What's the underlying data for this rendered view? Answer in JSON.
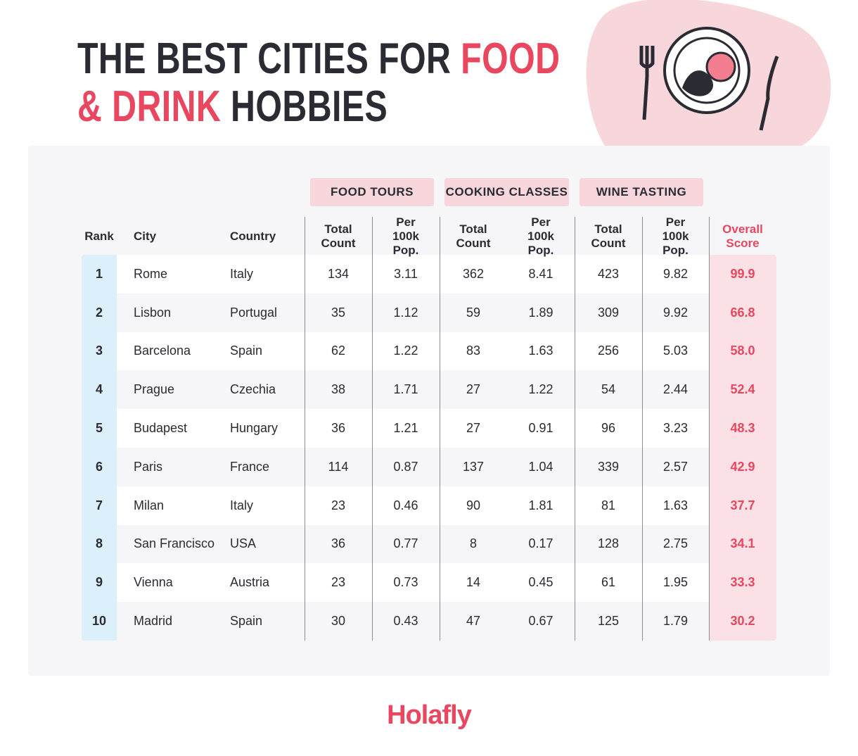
{
  "title": {
    "line1_dark": "THE BEST CITIES FOR",
    "line1_accent": "FOOD",
    "line2_accent": "& DRINK",
    "line2_dark": "HOBBIES"
  },
  "table": {
    "groups": [
      "FOOD TOURS",
      "COOKING CLASSES",
      "WINE TASTING"
    ],
    "columns": [
      "Rank",
      "City",
      "Country",
      "Total Count",
      "Per 100k Pop.",
      "Total Count",
      "Per 100k Pop.",
      "Total Count",
      "Per 100k Pop.",
      "Overall Score"
    ],
    "rows": [
      [
        1,
        "Rome",
        "Italy",
        134,
        3.11,
        362,
        8.41,
        423,
        9.82,
        "99.9"
      ],
      [
        2,
        "Lisbon",
        "Portugal",
        35,
        1.12,
        59,
        1.89,
        309,
        9.92,
        "66.8"
      ],
      [
        3,
        "Barcelona",
        "Spain",
        62,
        1.22,
        83,
        1.63,
        256,
        5.03,
        "58.0"
      ],
      [
        4,
        "Prague",
        "Czechia",
        38,
        1.71,
        27,
        1.22,
        54,
        2.44,
        "52.4"
      ],
      [
        5,
        "Budapest",
        "Hungary",
        36,
        1.21,
        27,
        0.91,
        96,
        3.23,
        "48.3"
      ],
      [
        6,
        "Paris",
        "France",
        114,
        0.87,
        137,
        1.04,
        339,
        2.57,
        "42.9"
      ],
      [
        7,
        "Milan",
        "Italy",
        23,
        0.46,
        90,
        1.81,
        81,
        1.63,
        "37.7"
      ],
      [
        8,
        "San Francisco",
        "USA",
        36,
        0.77,
        8,
        0.17,
        128,
        2.75,
        "34.1"
      ],
      [
        9,
        "Vienna",
        "Austria",
        23,
        0.73,
        14,
        0.45,
        61,
        1.95,
        "33.3"
      ],
      [
        10,
        "Madrid",
        "Spain",
        30,
        0.43,
        47,
        0.67,
        125,
        1.79,
        "30.2"
      ]
    ]
  },
  "logo": "Holafly"
}
